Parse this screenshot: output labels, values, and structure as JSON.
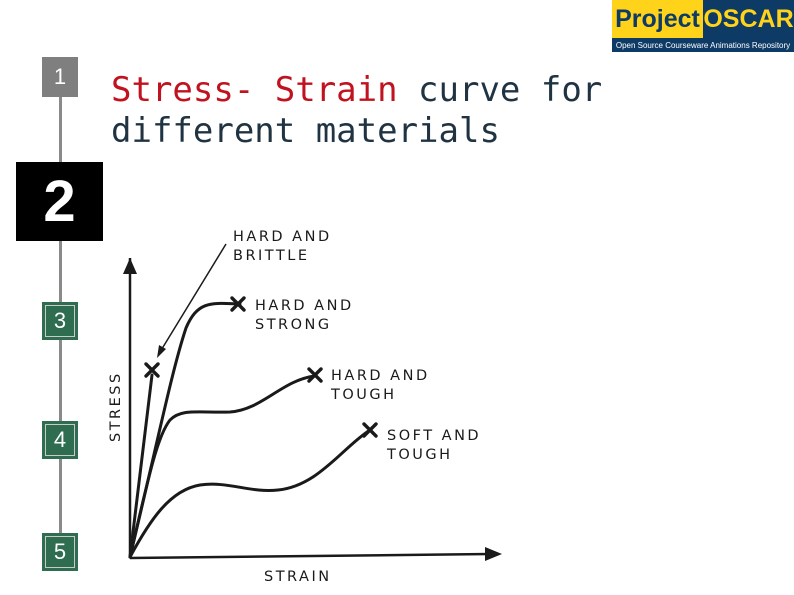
{
  "nav": {
    "steps": [
      "1",
      "2",
      "3",
      "4",
      "5"
    ],
    "active_step": "2"
  },
  "title": {
    "highlight": "Stress- Strain",
    "rest": " curve for different materials"
  },
  "logo": {
    "word1": "Project",
    "word2": "OSCAR",
    "tagline": "Open Source Courseware Animations Repository"
  },
  "diagram": {
    "x_axis_label": "STRAIN",
    "y_axis_label": "STRESS",
    "curves": [
      {
        "label_line1": "HARD AND",
        "label_line2": "BRITTLE"
      },
      {
        "label_line1": "HARD AND",
        "label_line2": "STRONG"
      },
      {
        "label_line1": "HARD AND",
        "label_line2": "TOUGH"
      },
      {
        "label_line1": "SOFT AND",
        "label_line2": "TOUGH"
      }
    ]
  },
  "colors": {
    "accent_red": "#c0121f",
    "title_text": "#1f3342",
    "step_active": "#000000",
    "step_done": "#7f7f7f",
    "step_pending": "#2e6d4f",
    "logo_yellow": "#ffd31a",
    "logo_navy": "#0e3b66"
  }
}
